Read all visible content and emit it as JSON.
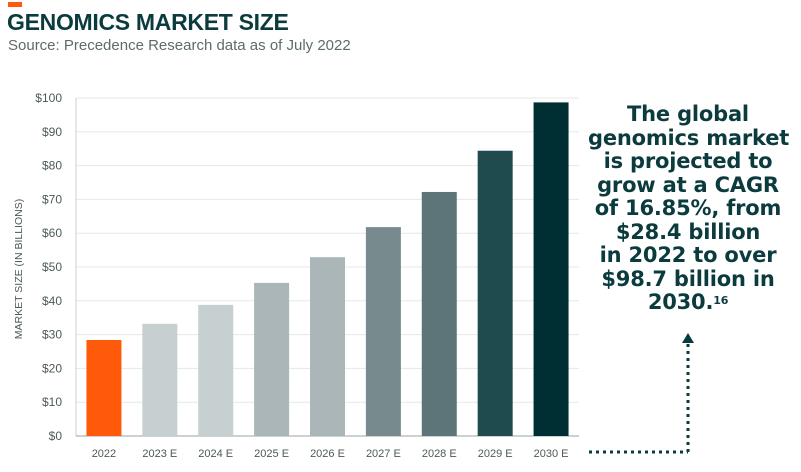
{
  "header": {
    "title": "GENOMICS MARKET SIZE",
    "subtitle": "Source: Precedence Research data as of July 2022",
    "accent_color": "#ff5a0a"
  },
  "callout": {
    "lines": [
      "The global",
      "genomics market",
      "is projected to",
      "grow at a CAGR",
      "of 16.85%, from",
      "$28.4 billion",
      "in 2022 to over",
      "$98.7 billion in",
      "2030."
    ],
    "footnote": "16",
    "arrow_icon": "dotted-arrow-up-icon",
    "color": "#0b3b3d"
  },
  "chart_data": {
    "type": "bar",
    "categories": [
      "2022",
      "2023 E",
      "2024 E",
      "2025 E",
      "2026 E",
      "2027 E",
      "2028 E",
      "2029 E",
      "2030 E"
    ],
    "values": [
      28.4,
      33.2,
      38.8,
      45.3,
      52.9,
      61.8,
      72.2,
      84.4,
      98.7
    ],
    "bar_colors": [
      "#ff5a0a",
      "#c6d0d0",
      "#c6d0d0",
      "#aab6b7",
      "#aab6b7",
      "#778b8e",
      "#5d7579",
      "#1f4a4e",
      "#002f33"
    ],
    "ylabel": "MARKET SIZE (IN BILLIONS)",
    "xlabel": "",
    "ylim": [
      0,
      100
    ],
    "yticks": [
      0,
      10,
      20,
      30,
      40,
      50,
      60,
      70,
      80,
      90,
      100
    ],
    "ytick_labels": [
      "$0",
      "$10",
      "$20",
      "$30",
      "$40",
      "$50",
      "$60",
      "$70",
      "$80",
      "$90",
      "$100"
    ],
    "grid": true,
    "legend": "none"
  }
}
